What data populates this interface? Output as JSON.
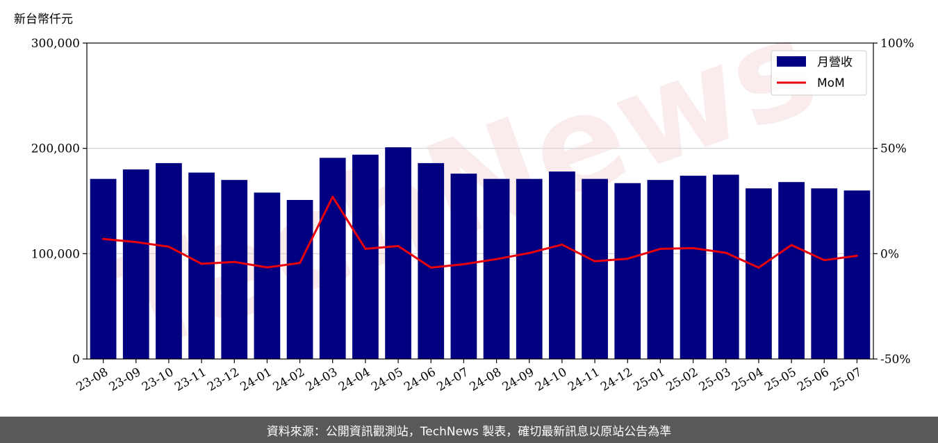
{
  "chart_data": {
    "type": "bar",
    "unit_label": "新台幣仟元",
    "categories": [
      "23-08",
      "23-09",
      "23-10",
      "23-11",
      "23-12",
      "24-01",
      "24-02",
      "24-03",
      "24-04",
      "24-05",
      "24-06",
      "24-07",
      "24-08",
      "24-09",
      "24-10",
      "24-11",
      "24-12",
      "25-01",
      "25-02",
      "25-03",
      "25-04",
      "25-05",
      "25-06",
      "25-07"
    ],
    "series": [
      {
        "name": "月營收",
        "type": "bar",
        "axis": "left",
        "color": "#000080",
        "values": [
          171000,
          180000,
          186000,
          177000,
          170000,
          158000,
          151000,
          191000,
          194000,
          201000,
          186000,
          176000,
          171000,
          171000,
          178000,
          171000,
          167000,
          170000,
          174000,
          175000,
          162000,
          168000,
          162000,
          160000
        ]
      },
      {
        "name": "MoM",
        "type": "line",
        "axis": "right",
        "color": "#e8000b",
        "values": [
          7.0,
          5.5,
          3.3,
          -4.8,
          -3.9,
          -6.5,
          -4.4,
          27.0,
          2.3,
          3.6,
          -6.6,
          -5.0,
          -2.6,
          0.3,
          4.3,
          -3.6,
          -2.4,
          2.3,
          2.6,
          0.4,
          -6.6,
          4.1,
          -3.1,
          -1.0
        ]
      }
    ],
    "y_left": {
      "min": 0,
      "max": 300000,
      "ticks": [
        "0",
        "100,000",
        "200,000",
        "300,000"
      ]
    },
    "y_right": {
      "min": -50,
      "max": 100,
      "ticks": [
        "-50%",
        "0%",
        "50%",
        "100%"
      ]
    },
    "grid": "horizontal",
    "legend_position": "top-right"
  },
  "watermark": "TechNews",
  "footer": {
    "text": "資料來源：公開資訊觀測站，TechNews 製表，確切最新訊息以原站公告為準"
  }
}
